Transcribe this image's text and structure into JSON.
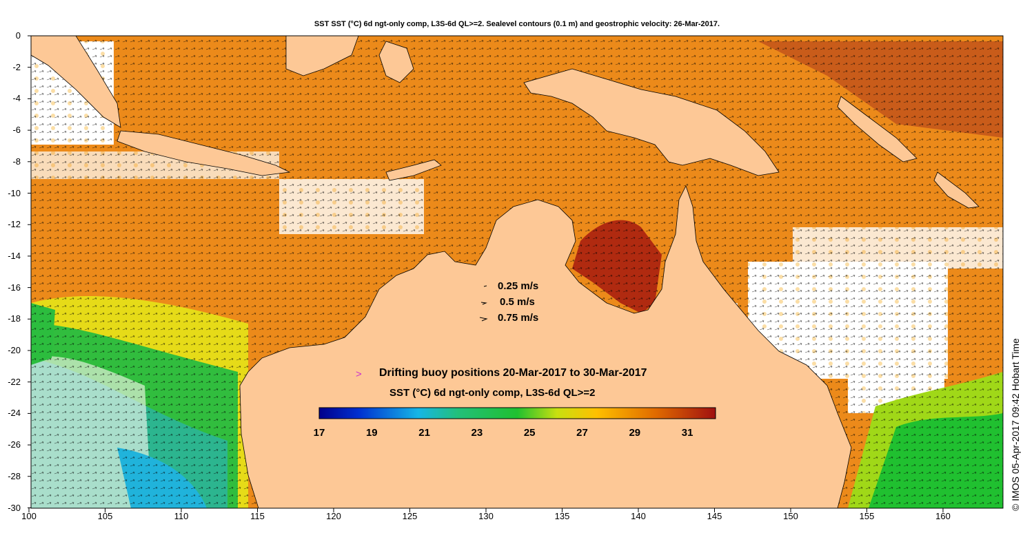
{
  "title": "SST SST (°C) 6d ngt-only comp, L3S-6d QL>=2. Sealevel contours (0.1 m) and geostrophic velocity: 26-Mar-2017.",
  "y_axis_labels": [
    "0",
    "-2",
    "-4",
    "-6",
    "-8",
    "-10",
    "-12",
    "-14",
    "-16",
    "-18",
    "-20",
    "-22",
    "-24",
    "-26",
    "-28",
    "-30"
  ],
  "x_axis_labels": [
    "100",
    "105",
    "110",
    "115",
    "120",
    "125",
    "130",
    "135",
    "140",
    "145",
    "150",
    "155",
    "160"
  ],
  "velocity_legend": [
    "0.25 m/s",
    "0.5 m/s",
    "0.75 m/s"
  ],
  "buoy_legend": "Drifting buoy positions 20-Mar-2017 to 30-Mar-2017",
  "colorbar_title": "SST (°C) 6d ngt-only comp, L3S-6d QL>=2",
  "colorbar_ticks": [
    "17",
    "19",
    "21",
    "23",
    "25",
    "27",
    "29",
    "31"
  ],
  "credit": "© IMOS 05-Apr-2017 09:42 Hobart Time",
  "colors": {
    "land": "#fdc896",
    "buoy_marker": "#cc33cc",
    "colorscale": [
      "#00008b",
      "#0030d0",
      "#0a8ee8",
      "#16c2d8",
      "#22c07a",
      "#20c030",
      "#9ad818",
      "#f0e800",
      "#ffc000",
      "#f08a00",
      "#d85800",
      "#a01010"
    ]
  }
}
